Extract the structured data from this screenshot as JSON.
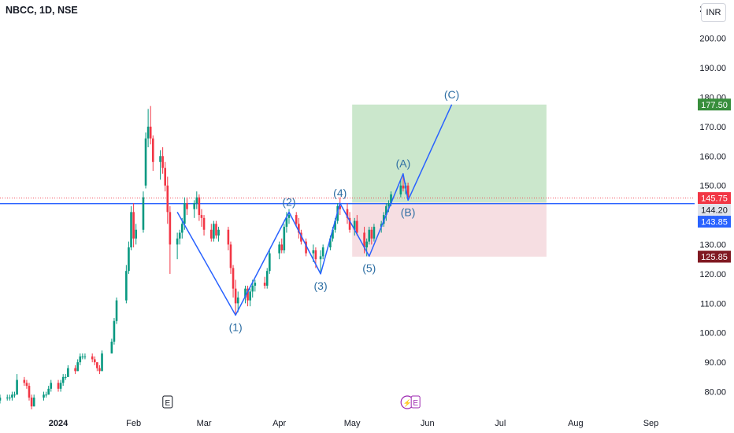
{
  "header": {
    "symbol": "NBCC, 1D, NSE",
    "currency": "INR"
  },
  "colors": {
    "up": "#089981",
    "down": "#f23645",
    "wave": "#2962ff",
    "waveLabel": "#2d6ea3",
    "price_line": "#2962ff",
    "profit_zone": "#c8e6c9",
    "loss_zone": "#f5dce0",
    "label_target": "#388e3c",
    "label_stop": "#801922",
    "label_last": "#f23645",
    "label_mid": "#e0e3eb",
    "label_price": "#2962ff"
  },
  "chart_data": {
    "type": "candlestick",
    "title": "NBCC, 1D, NSE",
    "y_range": [
      74,
      213
    ],
    "y_ticks": [
      80,
      90,
      100,
      110,
      120,
      130,
      140,
      150,
      160,
      170,
      180,
      190,
      200,
      210
    ],
    "y_tick_labels": [
      "80.00",
      "90.00",
      "100.00",
      "110.00",
      "120.00",
      "130.00",
      "140.00",
      "150.00",
      "160.00",
      "170.00",
      "180.00",
      "190.00",
      "200.00",
      "210.00"
    ],
    "x_range": [
      "2023-12-08",
      "2024-09-19"
    ],
    "x_ticks": [
      {
        "date": "2024-01-01",
        "label": "2024",
        "bold": true
      },
      {
        "date": "2024-02-01",
        "label": "Feb"
      },
      {
        "date": "2024-03-01",
        "label": "Mar"
      },
      {
        "date": "2024-04-01",
        "label": "Apr"
      },
      {
        "date": "2024-05-01",
        "label": "May"
      },
      {
        "date": "2024-06-01",
        "label": "Jun"
      },
      {
        "date": "2024-07-01",
        "label": "Jul"
      },
      {
        "date": "2024-08-01",
        "label": "Aug"
      },
      {
        "date": "2024-09-01",
        "label": "Sep"
      }
    ],
    "candles": [
      [
        "2023-12-08",
        77,
        79,
        76,
        78
      ],
      [
        "2023-12-11",
        78,
        79,
        77,
        78
      ],
      [
        "2023-12-12",
        78,
        79,
        77,
        78
      ],
      [
        "2023-12-13",
        78,
        80,
        77,
        79
      ],
      [
        "2023-12-14",
        79,
        80,
        78,
        79
      ],
      [
        "2023-12-15",
        79,
        86,
        79,
        84
      ],
      [
        "2023-12-18",
        84,
        85,
        82,
        83
      ],
      [
        "2023-12-19",
        83,
        84,
        81,
        82
      ],
      [
        "2023-12-20",
        82,
        83,
        77,
        78
      ],
      [
        "2023-12-21",
        78,
        79,
        74,
        75
      ],
      [
        "2023-12-22",
        75,
        79,
        75,
        78
      ],
      [
        "2023-12-26",
        78,
        80,
        77,
        79
      ],
      [
        "2023-12-27",
        79,
        80,
        78,
        79
      ],
      [
        "2023-12-28",
        79,
        82,
        79,
        81
      ],
      [
        "2023-12-29",
        81,
        84,
        80,
        83
      ],
      [
        "2024-01-01",
        83,
        84,
        80,
        81
      ],
      [
        "2024-01-02",
        81,
        84,
        80,
        83
      ],
      [
        "2024-01-03",
        83,
        86,
        82,
        85
      ],
      [
        "2024-01-04",
        85,
        86,
        84,
        85
      ],
      [
        "2024-01-05",
        85,
        89,
        85,
        88
      ],
      [
        "2024-01-08",
        88,
        89,
        86,
        87
      ],
      [
        "2024-01-09",
        87,
        91,
        87,
        90
      ],
      [
        "2024-01-10",
        90,
        93,
        89,
        92
      ],
      [
        "2024-01-11",
        92,
        93,
        91,
        92
      ],
      [
        "2024-01-12",
        92,
        93,
        91,
        92
      ],
      [
        "2024-01-15",
        92,
        93,
        90,
        91
      ],
      [
        "2024-01-16",
        91,
        92,
        89,
        90
      ],
      [
        "2024-01-17",
        90,
        90,
        87,
        88
      ],
      [
        "2024-01-18",
        88,
        89,
        86,
        87
      ],
      [
        "2024-01-19",
        87,
        94,
        87,
        93
      ],
      [
        "2024-01-23",
        93,
        98,
        93,
        97
      ],
      [
        "2024-01-24",
        97,
        105,
        96,
        104
      ],
      [
        "2024-01-25",
        104,
        112,
        103,
        111
      ],
      [
        "2024-01-29",
        111,
        123,
        110,
        121
      ],
      [
        "2024-01-30",
        121,
        131,
        120,
        129
      ],
      [
        "2024-01-31",
        129,
        143,
        128,
        141
      ],
      [
        "2024-02-01",
        141,
        144,
        129,
        132
      ],
      [
        "2024-02-02",
        132,
        137,
        130,
        135
      ],
      [
        "2024-02-05",
        135,
        148,
        134,
        146
      ],
      [
        "2024-02-06",
        150,
        168,
        149,
        166
      ],
      [
        "2024-02-07",
        166,
        176,
        163,
        170
      ],
      [
        "2024-02-08",
        170,
        177,
        164,
        166
      ],
      [
        "2024-02-09",
        166,
        167,
        155,
        158
      ],
      [
        "2024-02-12",
        158,
        162,
        152,
        160
      ],
      [
        "2024-02-13",
        160,
        163,
        154,
        156
      ],
      [
        "2024-02-14",
        156,
        158,
        148,
        150
      ],
      [
        "2024-02-15",
        150,
        153,
        137,
        141
      ],
      [
        "2024-02-16",
        141,
        143,
        120,
        130
      ],
      [
        "2024-02-19",
        130,
        134,
        125,
        132
      ],
      [
        "2024-02-20",
        132,
        135,
        130,
        134
      ],
      [
        "2024-02-21",
        134,
        139,
        132,
        137
      ],
      [
        "2024-02-22",
        137,
        146,
        135,
        144
      ],
      [
        "2024-02-23",
        144,
        146,
        140,
        142
      ],
      [
        "2024-02-26",
        142,
        145,
        139,
        144
      ],
      [
        "2024-02-27",
        144,
        148,
        142,
        146
      ],
      [
        "2024-02-28",
        146,
        147,
        138,
        140
      ],
      [
        "2024-02-29",
        140,
        142,
        136,
        139
      ],
      [
        "2024-03-01",
        139,
        140,
        133,
        135
      ],
      [
        "2024-03-04",
        135,
        137,
        131,
        132
      ],
      [
        "2024-03-05",
        132,
        138,
        131,
        137
      ],
      [
        "2024-03-06",
        137,
        138,
        132,
        133
      ],
      [
        "2024-03-07",
        133,
        136,
        131,
        135
      ],
      [
        "2024-03-11",
        135,
        136,
        128,
        130
      ],
      [
        "2024-03-12",
        130,
        131,
        120,
        122
      ],
      [
        "2024-03-13",
        122,
        123,
        112,
        115
      ],
      [
        "2024-03-14",
        115,
        118,
        106,
        110
      ],
      [
        "2024-03-15",
        110,
        114,
        107,
        112
      ],
      [
        "2024-03-18",
        112,
        116,
        110,
        115
      ],
      [
        "2024-03-19",
        115,
        116,
        109,
        111
      ],
      [
        "2024-03-20",
        111,
        115,
        109,
        114
      ],
      [
        "2024-03-21",
        114,
        118,
        112,
        116
      ],
      [
        "2024-03-22",
        116,
        118,
        114,
        117
      ],
      [
        "2024-03-26",
        117,
        119,
        115,
        116
      ],
      [
        "2024-03-27",
        116,
        122,
        115,
        121
      ],
      [
        "2024-03-28",
        121,
        128,
        120,
        127
      ],
      [
        "2024-04-01",
        127,
        131,
        125,
        130
      ],
      [
        "2024-04-02",
        130,
        132,
        127,
        128
      ],
      [
        "2024-04-03",
        128,
        137,
        127,
        136
      ],
      [
        "2024-04-04",
        136,
        141,
        134,
        139
      ],
      [
        "2024-04-05",
        139,
        142,
        137,
        140
      ],
      [
        "2024-04-08",
        140,
        141,
        136,
        137
      ],
      [
        "2024-04-09",
        137,
        139,
        132,
        134
      ],
      [
        "2024-04-10",
        134,
        135,
        130,
        131
      ],
      [
        "2024-04-12",
        131,
        132,
        126,
        127
      ],
      [
        "2024-04-15",
        127,
        130,
        124,
        128
      ],
      [
        "2024-04-16",
        128,
        129,
        122,
        125
      ],
      [
        "2024-04-18",
        125,
        128,
        120,
        126
      ],
      [
        "2024-04-19",
        126,
        130,
        125,
        129
      ],
      [
        "2024-04-22",
        129,
        133,
        128,
        132
      ],
      [
        "2024-04-23",
        132,
        136,
        131,
        135
      ],
      [
        "2024-04-24",
        135,
        139,
        134,
        138
      ],
      [
        "2024-04-25",
        138,
        144,
        137,
        143
      ],
      [
        "2024-04-26",
        143,
        146,
        140,
        142
      ],
      [
        "2024-04-29",
        142,
        144,
        137,
        139
      ],
      [
        "2024-04-30",
        139,
        141,
        134,
        135
      ],
      [
        "2024-05-02",
        135,
        139,
        133,
        138
      ],
      [
        "2024-05-03",
        138,
        140,
        133,
        134
      ],
      [
        "2024-05-06",
        134,
        136,
        127,
        129
      ],
      [
        "2024-05-07",
        129,
        132,
        126,
        131
      ],
      [
        "2024-05-08",
        131,
        136,
        130,
        135
      ],
      [
        "2024-05-09",
        135,
        136,
        130,
        132
      ],
      [
        "2024-05-10",
        132,
        137,
        131,
        136
      ],
      [
        "2024-05-13",
        136,
        138,
        134,
        137
      ],
      [
        "2024-05-14",
        137,
        141,
        136,
        140
      ],
      [
        "2024-05-15",
        140,
        144,
        138,
        143
      ],
      [
        "2024-05-16",
        143,
        145,
        141,
        144
      ],
      [
        "2024-05-17",
        144,
        148,
        143,
        147
      ],
      [
        "2024-05-21",
        147,
        152,
        146,
        150
      ],
      [
        "2024-05-22",
        150,
        154,
        148,
        149
      ],
      [
        "2024-05-23",
        149,
        151,
        147,
        150
      ],
      [
        "2024-05-24",
        150,
        151,
        145,
        146
      ]
    ],
    "waves": [
      {
        "date": "2024-03-14",
        "price": 106,
        "label": "(1)",
        "label_pos": "below"
      },
      {
        "date": "2024-04-05",
        "price": 141,
        "label": "(2)",
        "label_pos": "above"
      },
      {
        "date": "2024-04-18",
        "price": 120,
        "label": "(3)",
        "label_pos": "below"
      },
      {
        "date": "2024-04-26",
        "price": 144,
        "label": "(4)",
        "label_pos": "above"
      },
      {
        "date": "2024-05-08",
        "price": 126,
        "label": "(5)",
        "label_pos": "below"
      },
      {
        "date": "2024-05-22",
        "price": 154,
        "label": "(A)",
        "label_pos": "above"
      },
      {
        "date": "2024-05-24",
        "price": 145,
        "label": "(B)",
        "label_pos": "below"
      },
      {
        "date": "2024-06-11",
        "price": 177.5,
        "label": "(C)",
        "label_pos": "above"
      }
    ],
    "wave_start": {
      "date": "2024-02-19",
      "price": 141
    },
    "position": {
      "start": "2024-05-01",
      "end": "2024-07-20",
      "entry": 144.2,
      "target": 177.5,
      "stop": 125.85
    },
    "horizontal_line": 143.85,
    "last_close": 145.75,
    "price_labels": [
      {
        "value": 177.5,
        "text": "177.50",
        "style": "target"
      },
      {
        "value": 145.75,
        "text": "145.75",
        "style": "last"
      },
      {
        "value": 144.2,
        "text": "144.20",
        "style": "mid"
      },
      {
        "value": 143.85,
        "text": "143.85",
        "style": "price"
      },
      {
        "value": 125.85,
        "text": "125.85",
        "style": "stop"
      }
    ],
    "event_markers": [
      {
        "date": "2024-02-15",
        "text": "E",
        "type": "earnings"
      },
      {
        "date": "2024-05-25",
        "text": "E",
        "type": "earnings_split"
      }
    ],
    "split_glyph": "⚡"
  }
}
